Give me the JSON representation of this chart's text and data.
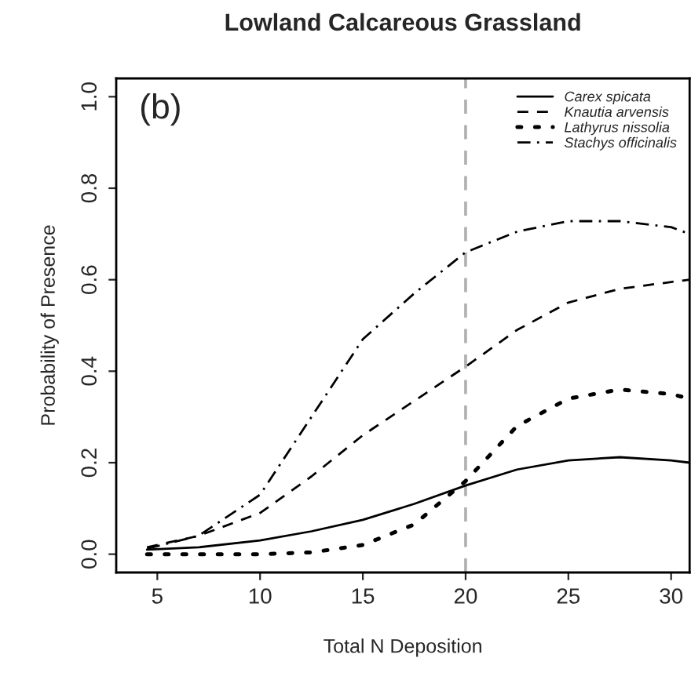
{
  "chart_data": {
    "type": "line",
    "title": "Lowland Calcareous Grassland",
    "xlabel": "Total N Deposition",
    "ylabel": "Probability of Presence",
    "annotations": [
      "(b)"
    ],
    "x": [
      4.5,
      7,
      10,
      12.5,
      15,
      17.5,
      20,
      22.5,
      25,
      27.5,
      30,
      30.9
    ],
    "series": [
      {
        "name": "Carex spicata",
        "color": "#000000",
        "line_style": "solid",
        "values": [
          0.01,
          0.015,
          0.03,
          0.05,
          0.075,
          0.11,
          0.15,
          0.185,
          0.205,
          0.212,
          0.205,
          0.2
        ]
      },
      {
        "name": "Knautia arvensis",
        "color": "#000000",
        "line_style": "dashed",
        "values": [
          0.015,
          0.04,
          0.09,
          0.17,
          0.26,
          0.335,
          0.41,
          0.49,
          0.55,
          0.58,
          0.595,
          0.6
        ]
      },
      {
        "name": "Lathyrus nissolia",
        "color": "#000000",
        "line_style": "dotted",
        "values": [
          0.0,
          0.0,
          0.0,
          0.004,
          0.02,
          0.065,
          0.16,
          0.28,
          0.34,
          0.36,
          0.35,
          0.34
        ]
      },
      {
        "name": "Stachys officinalis",
        "color": "#000000",
        "line_style": "dashdot",
        "values": [
          0.012,
          0.04,
          0.13,
          0.3,
          0.47,
          0.57,
          0.66,
          0.705,
          0.728,
          0.728,
          0.715,
          0.7
        ]
      }
    ],
    "ref_lines": [
      {
        "axis": "x",
        "value": 20,
        "color": "#b0b0b0",
        "line_style": "dashed"
      }
    ],
    "xlim": [
      3.0,
      30.9
    ],
    "xticks": [
      5,
      10,
      15,
      20,
      25,
      30
    ],
    "ylim": [
      -0.04,
      1.04
    ],
    "yticks": [
      {
        "value": 0,
        "label": "0.0"
      },
      0.2,
      0.4,
      0.6,
      0.8,
      {
        "value": 1,
        "label": "1.0"
      }
    ],
    "grid": false,
    "legend": "top right"
  }
}
